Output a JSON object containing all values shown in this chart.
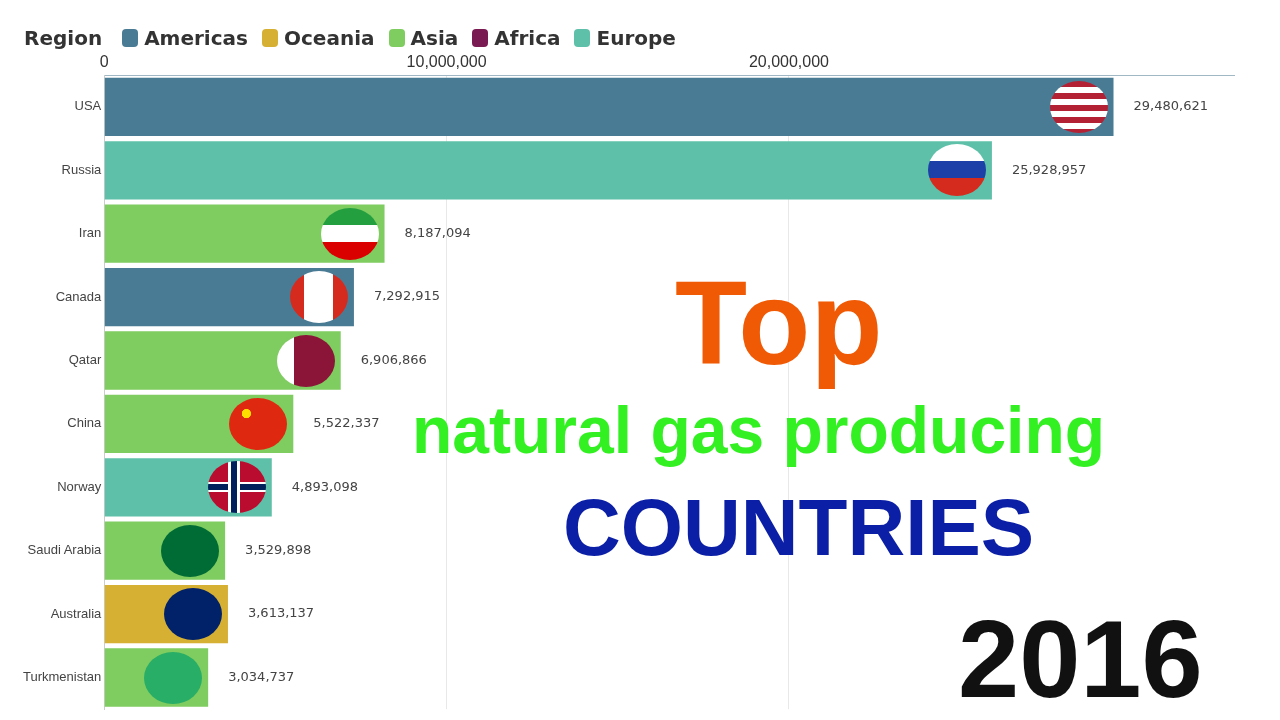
{
  "chart_data": {
    "type": "bar",
    "orientation": "horizontal",
    "stacked": true,
    "title": "Top",
    "subtitle": "natural gas producing",
    "annotations": [
      "COUNTRIES",
      "2016"
    ],
    "legend_title": "Region",
    "legend": "top left",
    "grid": "x",
    "categories": [
      "USA",
      "Russia",
      "Iran",
      "Canada",
      "Qatar",
      "China",
      "Norway",
      "Saudi Arabia",
      "Australia",
      "Turkmenistan"
    ],
    "xlim": [
      0,
      33000000
    ],
    "xticks": [
      0,
      {
        "value": 10000000,
        "label": "10,000,000"
      },
      {
        "value": 20000000,
        "label": "20,000,000"
      }
    ],
    "series": [
      {
        "name": "Americas",
        "color": "#4a7b94",
        "values": [
          29480621,
          null,
          null,
          7292915,
          null,
          null,
          null,
          null,
          null,
          null
        ],
        "value_labels": [
          "29,480,621",
          null,
          null,
          "7,292,915",
          null,
          null,
          null,
          null,
          null,
          null
        ]
      },
      {
        "name": "Oceania",
        "color": "#d6b033",
        "values": [
          null,
          null,
          null,
          null,
          null,
          null,
          null,
          null,
          3613137,
          null
        ],
        "value_labels": [
          null,
          null,
          null,
          null,
          null,
          null,
          null,
          null,
          "3,613,137",
          null
        ]
      },
      {
        "name": "Asia",
        "color": "#7fcc60",
        "values": [
          null,
          null,
          8187094,
          null,
          6906866,
          5522337,
          null,
          3529898,
          null,
          3034737
        ],
        "value_labels": [
          null,
          null,
          "8,187,094",
          null,
          "6,906,866",
          "5,522,337",
          null,
          "3,529,898",
          null,
          "3,034,737"
        ]
      },
      {
        "name": "Africa",
        "color": "#7a1a52",
        "values": [
          null,
          null,
          null,
          null,
          null,
          null,
          null,
          null,
          null,
          null
        ]
      },
      {
        "name": "Europe",
        "color": "#5ec0a8",
        "values": [
          null,
          25928957,
          null,
          null,
          null,
          null,
          4893098,
          null,
          null,
          null
        ],
        "value_labels": [
          null,
          "25,928,957",
          null,
          null,
          null,
          null,
          "4,893,098",
          null,
          null,
          null
        ]
      }
    ]
  }
}
